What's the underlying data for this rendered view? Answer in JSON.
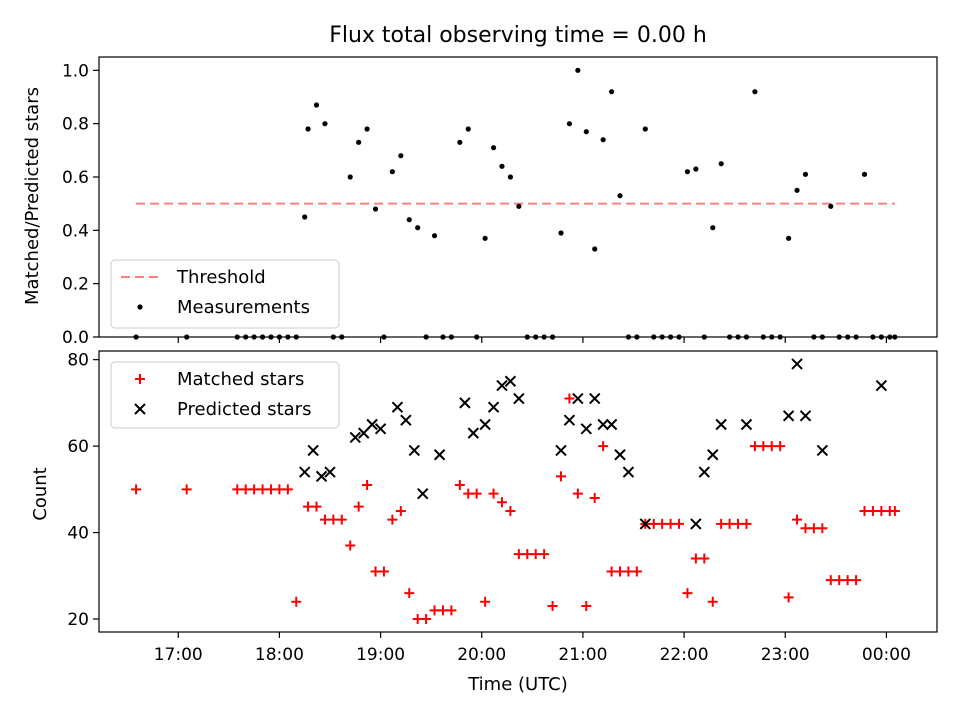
{
  "title": "Flux total observing time = 0.00 h",
  "xlabel": "Time (UTC)",
  "chart_data": [
    {
      "type": "scatter",
      "ylabel": "Matched/Predicted stars",
      "ylim": [
        0,
        1.05
      ],
      "yticks": [
        0.0,
        0.2,
        0.4,
        0.6,
        0.8,
        1.0
      ],
      "ytick_labels": [
        "0.0",
        "0.2",
        "0.4",
        "0.6",
        "0.8",
        "1.0"
      ],
      "xlim": [
        "16:13",
        "00:30"
      ],
      "xticks": [
        "17:00",
        "18:00",
        "19:00",
        "20:00",
        "21:00",
        "22:00",
        "23:00",
        "00:00"
      ],
      "grid": false,
      "legend_position": "lower-left",
      "series": [
        {
          "name": "Threshold",
          "kind": "line",
          "style": "dashed",
          "color": "#ff7f7f",
          "x": [
            "16:35",
            "00:05"
          ],
          "y": [
            0.5,
            0.5
          ]
        },
        {
          "name": "Measurements",
          "kind": "points",
          "color": "#000000",
          "x": [
            "16:35",
            "17:05",
            "17:35",
            "17:40",
            "17:45",
            "17:50",
            "17:55",
            "18:00",
            "18:05",
            "18:10",
            "18:15",
            "18:17",
            "18:22",
            "18:27",
            "18:32",
            "18:37",
            "18:42",
            "18:47",
            "18:52",
            "18:57",
            "19:02",
            "19:07",
            "19:12",
            "19:17",
            "19:22",
            "19:27",
            "19:32",
            "19:37",
            "19:42",
            "19:47",
            "19:52",
            "19:57",
            "20:02",
            "20:07",
            "20:12",
            "20:17",
            "20:22",
            "20:27",
            "20:32",
            "20:37",
            "20:42",
            "20:47",
            "20:52",
            "20:57",
            "21:02",
            "21:07",
            "21:12",
            "21:17",
            "21:22",
            "21:27",
            "21:32",
            "21:37",
            "21:42",
            "21:47",
            "21:52",
            "21:57",
            "22:02",
            "22:07",
            "22:12",
            "22:17",
            "22:22",
            "22:27",
            "22:32",
            "22:37",
            "22:42",
            "22:47",
            "22:52",
            "22:57",
            "23:02",
            "23:07",
            "23:12",
            "23:17",
            "23:22",
            "23:27",
            "23:32",
            "23:37",
            "23:42",
            "23:47",
            "23:52",
            "23:57",
            "00:02",
            "00:05"
          ],
          "y": [
            0,
            0,
            0,
            0,
            0,
            0,
            0,
            0,
            0,
            0,
            0.45,
            0.78,
            0.87,
            0.8,
            0,
            0,
            0.6,
            0.73,
            0.78,
            0.48,
            0,
            0.62,
            0.68,
            0.44,
            0.41,
            0,
            0.38,
            0,
            0,
            0.73,
            0.78,
            0,
            0.37,
            0.71,
            0.64,
            0.6,
            0.49,
            0,
            0,
            0,
            0,
            0.39,
            0.8,
            1.0,
            0.77,
            0.33,
            0.74,
            0.92,
            0.53,
            0,
            0,
            0.78,
            0,
            0,
            0,
            0,
            0.62,
            0.63,
            0,
            0.41,
            0.65,
            0,
            0,
            0,
            0.92,
            0,
            0,
            0,
            0.37,
            0.55,
            0.61,
            0,
            0,
            0.49,
            0,
            0,
            0,
            0.61,
            0,
            0,
            0,
            0
          ]
        }
      ]
    },
    {
      "type": "scatter",
      "ylabel": "Count",
      "ylim": [
        17,
        82
      ],
      "yticks": [
        20,
        40,
        60,
        80
      ],
      "ytick_labels": [
        "20",
        "40",
        "60",
        "80"
      ],
      "xlim": [
        "16:13",
        "00:30"
      ],
      "xticks": [
        "17:00",
        "18:00",
        "19:00",
        "20:00",
        "21:00",
        "22:00",
        "23:00",
        "00:00"
      ],
      "grid": false,
      "legend_position": "upper-left",
      "series": [
        {
          "name": "Matched stars",
          "marker": "+",
          "color": "#ff0000",
          "x": [
            "16:35",
            "17:05",
            "17:35",
            "17:40",
            "17:45",
            "17:50",
            "17:55",
            "18:00",
            "18:05",
            "18:10",
            "18:17",
            "18:22",
            "18:27",
            "18:32",
            "18:37",
            "18:42",
            "18:47",
            "18:52",
            "18:57",
            "19:02",
            "19:07",
            "19:12",
            "19:17",
            "19:22",
            "19:27",
            "19:32",
            "19:37",
            "19:42",
            "19:47",
            "19:52",
            "19:57",
            "20:02",
            "20:07",
            "20:12",
            "20:17",
            "20:22",
            "20:27",
            "20:32",
            "20:37",
            "20:42",
            "20:47",
            "20:52",
            "20:57",
            "21:02",
            "21:07",
            "21:12",
            "21:17",
            "21:22",
            "21:27",
            "21:32",
            "21:37",
            "21:42",
            "21:47",
            "21:52",
            "21:57",
            "22:02",
            "22:07",
            "22:12",
            "22:17",
            "22:22",
            "22:27",
            "22:32",
            "22:37",
            "22:42",
            "22:47",
            "22:52",
            "22:57",
            "23:02",
            "23:07",
            "23:12",
            "23:17",
            "23:22",
            "23:27",
            "23:32",
            "23:37",
            "23:42",
            "23:47",
            "23:52",
            "23:57",
            "00:02",
            "00:05"
          ],
          "y": [
            50,
            50,
            50,
            50,
            50,
            50,
            50,
            50,
            50,
            24,
            46,
            46,
            43,
            43,
            43,
            37,
            46,
            51,
            31,
            31,
            43,
            45,
            26,
            20,
            20,
            22,
            22,
            22,
            51,
            49,
            49,
            24,
            49,
            47,
            45,
            35,
            35,
            35,
            35,
            23,
            53,
            71,
            49,
            23,
            48,
            60,
            31,
            31,
            31,
            31,
            42,
            42,
            42,
            42,
            42,
            26,
            34,
            34,
            24,
            42,
            42,
            42,
            42,
            60,
            60,
            60,
            60,
            25,
            43,
            41,
            41,
            41,
            29,
            29,
            29,
            29,
            45,
            45,
            45,
            45,
            45
          ]
        },
        {
          "name": "Predicted stars",
          "marker": "x",
          "color": "#000000",
          "x": [
            "18:15",
            "18:20",
            "18:25",
            "18:30",
            "18:45",
            "18:50",
            "18:55",
            "19:00",
            "19:10",
            "19:15",
            "19:20",
            "19:25",
            "19:35",
            "19:50",
            "19:55",
            "20:02",
            "20:07",
            "20:12",
            "20:17",
            "20:22",
            "20:47",
            "20:52",
            "20:57",
            "21:02",
            "21:07",
            "21:12",
            "21:17",
            "21:22",
            "21:27",
            "21:37",
            "22:07",
            "22:12",
            "22:17",
            "22:22",
            "22:37",
            "23:02",
            "23:07",
            "23:12",
            "23:22",
            "23:57"
          ],
          "y": [
            54,
            59,
            53,
            54,
            62,
            63,
            65,
            64,
            69,
            66,
            59,
            49,
            58,
            70,
            63,
            65,
            69,
            74,
            75,
            71,
            59,
            66,
            71,
            64,
            71,
            65,
            65,
            58,
            54,
            42,
            42,
            54,
            58,
            65,
            65,
            67,
            79,
            67,
            59,
            74
          ]
        }
      ]
    }
  ]
}
